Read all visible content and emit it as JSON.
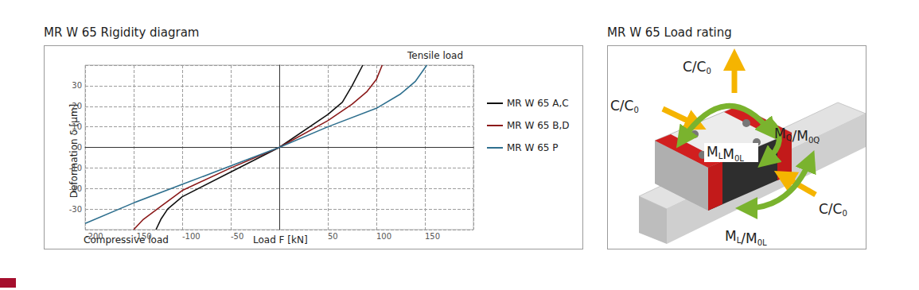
{
  "chart_data": {
    "type": "line",
    "title": "MR W 65 Rigidity diagram",
    "x_label": "Load F [kN]",
    "y_label": "Deformation δ [µm]",
    "annotations": {
      "tensile": "Tensile load",
      "compressive": "Compressive load"
    },
    "xlim": [
      -200,
      200
    ],
    "xticks": [
      -200,
      -150,
      -100,
      -50,
      50,
      100,
      150
    ],
    "ylim": [
      -40,
      40
    ],
    "yticks": [
      -30,
      -20,
      -10,
      0,
      10,
      20,
      30
    ],
    "grid": true,
    "legend": "right",
    "series": [
      {
        "name": "MR W 65 A,C",
        "color": "#111111",
        "x": [
          -127,
          -122,
          -115,
          -100,
          -50,
          0,
          50,
          65,
          75,
          86
        ],
        "values": [
          -40,
          -35,
          -30,
          -24,
          -12,
          0,
          16,
          22,
          30,
          40
        ]
      },
      {
        "name": "MR W 65 B,D",
        "color": "#8b1a1a",
        "x": [
          -150,
          -140,
          -120,
          -100,
          -50,
          0,
          50,
          75,
          90,
          100,
          106
        ],
        "values": [
          -40,
          -35,
          -28,
          -21,
          -10,
          0,
          13,
          21,
          27,
          33,
          40
        ]
      },
      {
        "name": "MR W 65 P",
        "color": "#2e6f8e",
        "x": [
          -200,
          -150,
          -100,
          -50,
          0,
          50,
          100,
          125,
          140,
          152
        ],
        "values": [
          -37,
          -27,
          -18,
          -9,
          0,
          10,
          19,
          26,
          32,
          40
        ]
      }
    ]
  },
  "diagram": {
    "title": "MR W 65 Load rating",
    "labels": [
      [
        [
          "C/C",
          "0"
        ]
      ],
      [
        [
          "C/C",
          "0"
        ]
      ],
      [
        [
          "C/C",
          "0"
        ]
      ],
      [
        [
          "M",
          "Q"
        ],
        [
          "/M",
          "0Q"
        ]
      ],
      [
        [
          "M",
          "L"
        ],
        [
          "M",
          "0L"
        ]
      ],
      [
        [
          "M",
          "L"
        ],
        [
          "/M",
          "0L"
        ]
      ]
    ]
  }
}
